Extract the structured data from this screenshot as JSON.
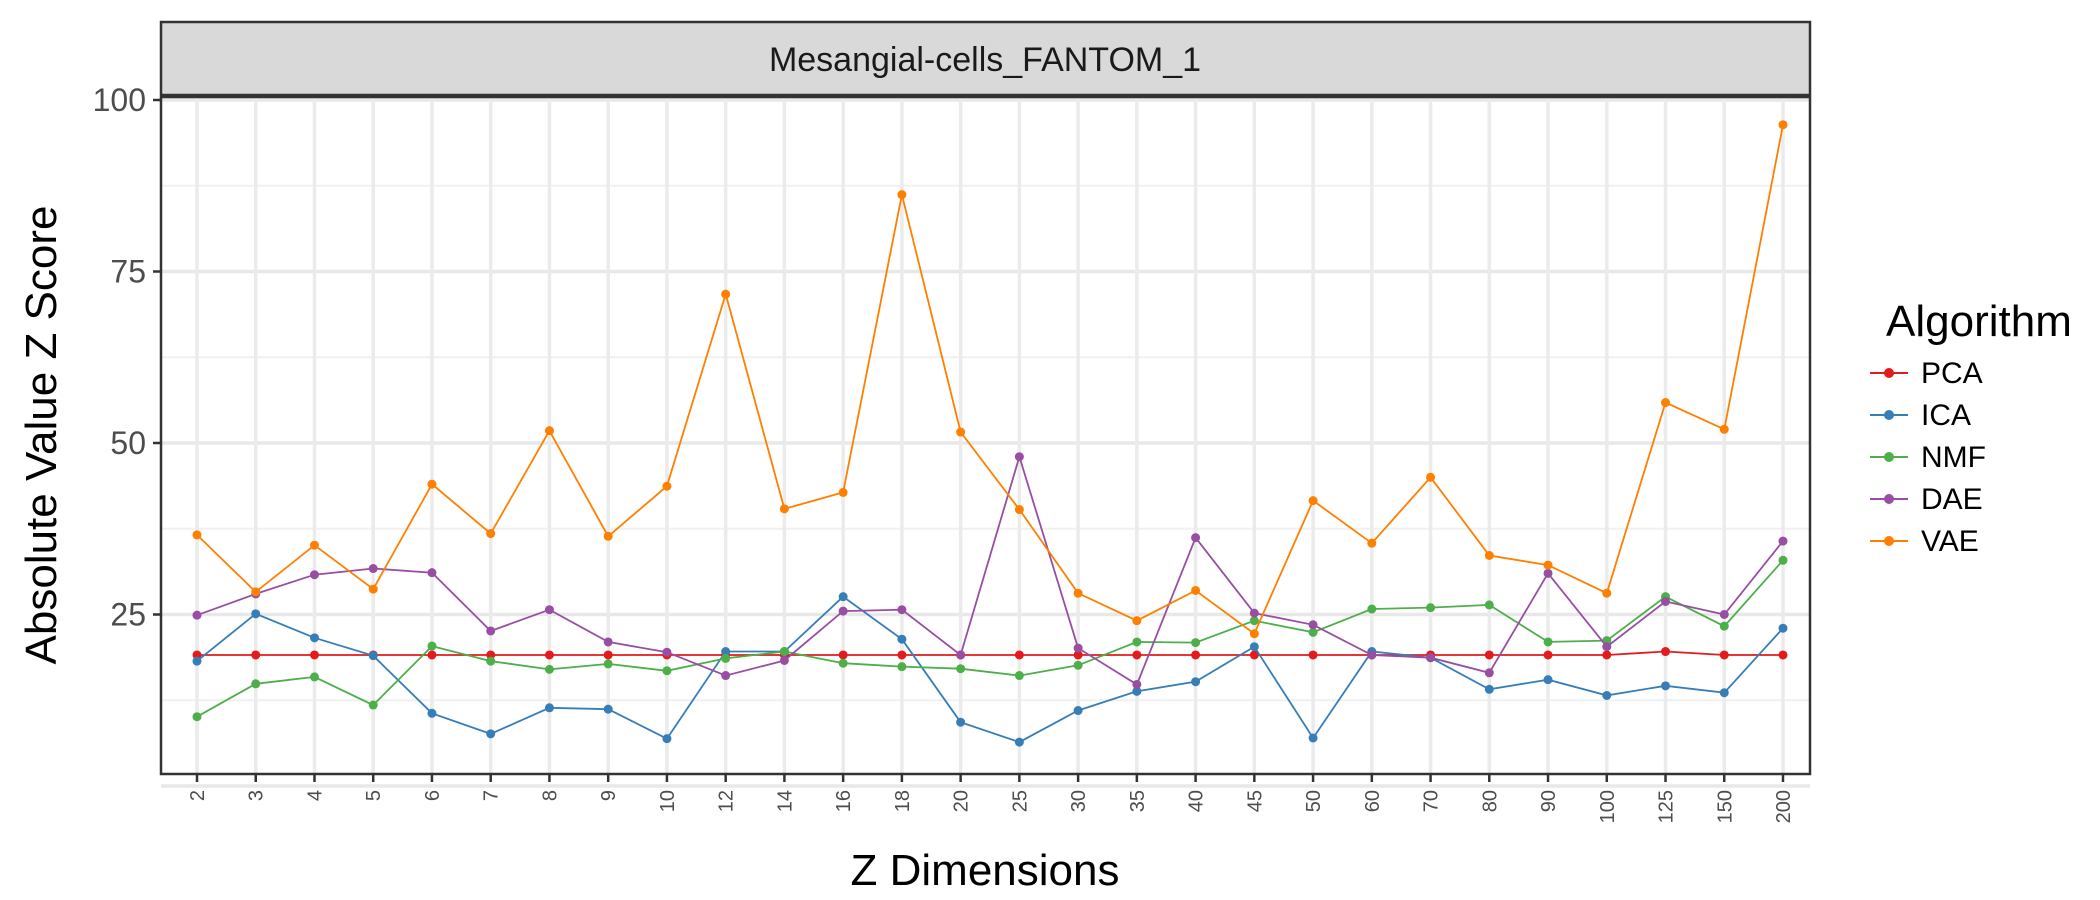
{
  "chart_data": {
    "type": "line",
    "facet_title": "Mesangial-cells_FANTOM_1",
    "xlabel": "Z Dimensions",
    "ylabel": "Absolute Value Z Score",
    "ylim": [
      0,
      100
    ],
    "yticks": [
      25,
      50,
      75,
      100
    ],
    "grid": true,
    "legend": {
      "title": "Algorithm",
      "position": "right"
    },
    "categories": [
      "2",
      "3",
      "4",
      "5",
      "6",
      "7",
      "8",
      "9",
      "10",
      "12",
      "14",
      "16",
      "18",
      "20",
      "25",
      "30",
      "35",
      "40",
      "45",
      "50",
      "60",
      "70",
      "80",
      "90",
      "100",
      "125",
      "150",
      "200"
    ],
    "series": [
      {
        "name": "PCA",
        "color": "#E41A1C",
        "values": [
          19.1,
          19.1,
          19.1,
          19.1,
          19.1,
          19.1,
          19.1,
          19.1,
          19.1,
          19.1,
          19.1,
          19.1,
          19.1,
          19.1,
          19.1,
          19.1,
          19.1,
          19.1,
          19.1,
          19.1,
          19.1,
          19.1,
          19.1,
          19.1,
          19.1,
          19.6,
          19.1,
          19.1
        ]
      },
      {
        "name": "ICA",
        "color": "#377EB8",
        "values": [
          18.2,
          25.1,
          21.6,
          19.0,
          10.6,
          7.6,
          11.4,
          11.2,
          6.9,
          19.6,
          19.6,
          27.6,
          21.4,
          9.3,
          6.4,
          11.0,
          13.8,
          15.2,
          20.3,
          7.0,
          19.6,
          18.7,
          14.1,
          15.5,
          13.2,
          14.6,
          13.6,
          23.0
        ]
      },
      {
        "name": "NMF",
        "color": "#4DAF4A",
        "values": [
          10.1,
          14.9,
          15.9,
          11.8,
          20.4,
          18.2,
          17.0,
          17.8,
          16.8,
          18.6,
          19.6,
          17.9,
          17.4,
          17.1,
          16.1,
          17.6,
          21.0,
          20.9,
          24.1,
          22.4,
          25.8,
          26.0,
          26.4,
          21.0,
          21.2,
          27.6,
          23.3,
          32.9
        ]
      },
      {
        "name": "DAE",
        "color": "#984EA3",
        "values": [
          24.9,
          28.0,
          30.8,
          31.7,
          31.1,
          22.6,
          25.7,
          21.0,
          19.5,
          16.1,
          18.3,
          25.5,
          25.7,
          19.1,
          48.0,
          20.1,
          14.8,
          36.2,
          25.2,
          23.5,
          19.1,
          18.7,
          16.5,
          31.0,
          20.3,
          26.9,
          25.0,
          35.7
        ]
      },
      {
        "name": "VAE",
        "color": "#FF7F00",
        "values": [
          36.6,
          28.3,
          35.1,
          28.7,
          44.0,
          36.8,
          51.8,
          36.4,
          43.7,
          71.7,
          40.4,
          42.8,
          86.2,
          51.6,
          40.3,
          28.1,
          24.1,
          28.5,
          22.2,
          41.6,
          35.4,
          45.0,
          33.6,
          32.2,
          28.1,
          55.9,
          52.0,
          96.4
        ]
      }
    ]
  }
}
